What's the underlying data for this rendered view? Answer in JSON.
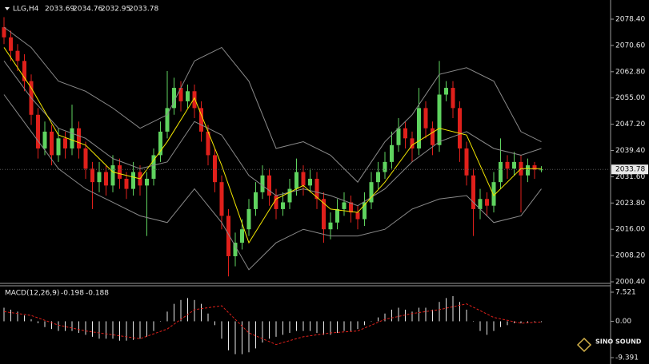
{
  "chart_data": [
    {
      "type": "candlestick",
      "symbol": "LLG,H4",
      "up_color": "#5fd35f",
      "down_color": "#e0201b",
      "grid": false,
      "ylim": [
        1999.93,
        2083.62
      ],
      "yticks": [
        {
          "value": 2078.4,
          "label": "2078.40"
        },
        {
          "value": 2070.6,
          "label": "2070.60"
        },
        {
          "value": 2062.8,
          "label": "2062.80"
        },
        {
          "value": 2055,
          "label": "2055.00"
        },
        {
          "value": 2047.2,
          "label": "2047.20"
        },
        {
          "value": 2039.4,
          "label": "2039.40"
        },
        {
          "value": 2031.6,
          "label": "2031.60"
        },
        {
          "value": 2023.8,
          "label": "2023.80"
        },
        {
          "value": 2016,
          "label": "2016.00"
        },
        {
          "value": 2008.2,
          "label": "2008.20"
        },
        {
          "value": 2000.4,
          "label": "2000.40"
        }
      ],
      "candles": [
        [
          2076,
          2079,
          2071,
          2073
        ],
        [
          2073,
          2075,
          2066,
          2069
        ],
        [
          2069,
          2071,
          2063,
          2066
        ],
        [
          2066,
          2068,
          2057,
          2060
        ],
        [
          2060,
          2062,
          2047,
          2050
        ],
        [
          2050,
          2052,
          2037,
          2040
        ],
        [
          2040,
          2048,
          2038,
          2045
        ],
        [
          2045,
          2047,
          2035,
          2038
        ],
        [
          2038,
          2046,
          2036,
          2043
        ],
        [
          2043,
          2045,
          2037,
          2040
        ],
        [
          2040,
          2053,
          2038,
          2046
        ],
        [
          2046,
          2048,
          2037,
          2040
        ],
        [
          2040,
          2042,
          2031,
          2034
        ],
        [
          2034,
          2036,
          2022,
          2030
        ],
        [
          2030,
          2036,
          2027,
          2033
        ],
        [
          2033,
          2035,
          2026,
          2029
        ],
        [
          2029,
          2038,
          2027,
          2035
        ],
        [
          2035,
          2037,
          2028,
          2031
        ],
        [
          2031,
          2033,
          2025,
          2028
        ],
        [
          2028,
          2036,
          2026,
          2033
        ],
        [
          2033,
          2035,
          2026,
          2029
        ],
        [
          2029,
          2033,
          2014,
          2031
        ],
        [
          2031,
          2040,
          2029,
          2038
        ],
        [
          2038,
          2048,
          2036,
          2045
        ],
        [
          2045,
          2063,
          2043,
          2052
        ],
        [
          2052,
          2061,
          2050,
          2058
        ],
        [
          2058,
          2060,
          2051,
          2054
        ],
        [
          2054,
          2059,
          2052,
          2057
        ],
        [
          2057,
          2059,
          2049,
          2052
        ],
        [
          2052,
          2054,
          2042,
          2045
        ],
        [
          2045,
          2047,
          2035,
          2038
        ],
        [
          2038,
          2040,
          2027,
          2030
        ],
        [
          2030,
          2032,
          2016,
          2020
        ],
        [
          2020,
          2022,
          2002,
          2008
        ],
        [
          2008,
          2015,
          2005,
          2012
        ],
        [
          2012,
          2019,
          2010,
          2016
        ],
        [
          2016,
          2025,
          2014,
          2022
        ],
        [
          2022,
          2030,
          2020,
          2027
        ],
        [
          2027,
          2035,
          2025,
          2032
        ],
        [
          2032,
          2034,
          2023,
          2026
        ],
        [
          2026,
          2028,
          2019,
          2022
        ],
        [
          2022,
          2027,
          2020,
          2024
        ],
        [
          2024,
          2031,
          2022,
          2028
        ],
        [
          2028,
          2037,
          2026,
          2033
        ],
        [
          2033,
          2035,
          2026,
          2029
        ],
        [
          2029,
          2034,
          2027,
          2031
        ],
        [
          2031,
          2033,
          2022,
          2025
        ],
        [
          2025,
          2027,
          2012,
          2016
        ],
        [
          2016,
          2021,
          2013,
          2018
        ],
        [
          2018,
          2025,
          2016,
          2022
        ],
        [
          2022,
          2027,
          2020,
          2024
        ],
        [
          2024,
          2026,
          2018,
          2021
        ],
        [
          2021,
          2023,
          2016,
          2019
        ],
        [
          2019,
          2027,
          2017,
          2024
        ],
        [
          2024,
          2033,
          2022,
          2030
        ],
        [
          2030,
          2036,
          2028,
          2033
        ],
        [
          2033,
          2039,
          2031,
          2036
        ],
        [
          2036,
          2045,
          2034,
          2041
        ],
        [
          2041,
          2049,
          2039,
          2046
        ],
        [
          2046,
          2048,
          2040,
          2043
        ],
        [
          2043,
          2045,
          2036,
          2040
        ],
        [
          2040,
          2058,
          2038,
          2052
        ],
        [
          2052,
          2054,
          2043,
          2046
        ],
        [
          2046,
          2048,
          2038,
          2041
        ],
        [
          2041,
          2066,
          2039,
          2056
        ],
        [
          2056,
          2060,
          2054,
          2058
        ],
        [
          2058,
          2060,
          2049,
          2052
        ],
        [
          2052,
          2054,
          2036,
          2040
        ],
        [
          2040,
          2042,
          2029,
          2032
        ],
        [
          2032,
          2034,
          2014,
          2022
        ],
        [
          2022,
          2028,
          2019,
          2025
        ],
        [
          2025,
          2027,
          2020,
          2023
        ],
        [
          2023,
          2033,
          2021,
          2030
        ],
        [
          2030,
          2043,
          2028,
          2036
        ],
        [
          2036,
          2038,
          2031,
          2034
        ],
        [
          2034,
          2039,
          2032,
          2036
        ],
        [
          2036,
          2038,
          2021,
          2032
        ],
        [
          2032,
          2037,
          2030,
          2035
        ],
        [
          2035,
          2036,
          2031,
          2033.69
        ],
        [
          2033.69,
          2034.76,
          2032.95,
          2033.78
        ]
      ],
      "indicator_x": [
        0,
        4,
        8,
        12,
        16,
        20,
        24,
        28,
        32,
        36,
        40,
        44,
        48,
        52,
        56,
        60,
        64,
        68,
        72,
        76,
        79
      ],
      "series": [
        {
          "color": "#8a8a8a",
          "values": [
            2076,
            2070,
            2060,
            2057,
            2052,
            2046,
            2050,
            2066,
            2070,
            2060,
            2040,
            2042,
            2038,
            2030,
            2042,
            2050,
            2062,
            2064,
            2060,
            2045,
            2042
          ]
        },
        {
          "color": "#8a8a8a",
          "values": [
            2066,
            2055,
            2046,
            2043,
            2037,
            2034,
            2036,
            2048,
            2044,
            2032,
            2026,
            2028,
            2026,
            2023,
            2028,
            2036,
            2042,
            2045,
            2040,
            2038,
            2040
          ]
        },
        {
          "color": "#8a8a8a",
          "values": [
            2056,
            2045,
            2034,
            2028,
            2024,
            2020,
            2018,
            2028,
            2018,
            2004,
            2012,
            2016,
            2014,
            2014,
            2016,
            2022,
            2025,
            2026,
            2018,
            2020,
            2028
          ]
        },
        {
          "color": "#f2e600",
          "values": [
            2070,
            2058,
            2044,
            2041,
            2033,
            2031,
            2042,
            2055,
            2035,
            2012,
            2025,
            2029,
            2022,
            2021,
            2030,
            2041,
            2046,
            2044,
            2026,
            2034,
            2034
          ]
        }
      ]
    },
    {
      "type": "macd",
      "label": "MACD(12,26,9)",
      "hist_color": "#e8e8e8",
      "signal_color": "#e0201b",
      "ylim": [
        -10.21,
        9.17
      ],
      "yticks": [
        7.521,
        {
          "value": 0,
          "label": "0.00"
        },
        -9.391
      ],
      "histogram": [
        3.5,
        3,
        2.5,
        1.5,
        0.5,
        -0.5,
        -1.5,
        -2,
        -2.5,
        -2.5,
        -2.5,
        -3,
        -3.5,
        -4,
        -4.5,
        -4.5,
        -4.5,
        -5,
        -5,
        -4.8,
        -4.5,
        -4,
        -2.5,
        0,
        2.5,
        4.5,
        5.5,
        6,
        5.5,
        4.5,
        2,
        -1,
        -4.5,
        -7.5,
        -8.5,
        -8.5,
        -8,
        -7,
        -5.5,
        -4.5,
        -4,
        -3.5,
        -3,
        -2.5,
        -2.5,
        -2.5,
        -3,
        -3.5,
        -3.5,
        -3,
        -2.5,
        -2.5,
        -2,
        -1,
        0,
        1,
        2,
        3,
        3.5,
        3,
        2.5,
        3.5,
        3.5,
        3,
        5,
        6,
        6.5,
        5,
        3,
        0,
        -2.5,
        -3.5,
        -2.5,
        -1.5,
        -1,
        -0.5,
        -0.5,
        -0.3,
        -0.2,
        -0.198
      ],
      "signal_x": [
        0,
        4,
        8,
        12,
        16,
        20,
        24,
        28,
        32,
        36,
        40,
        44,
        48,
        52,
        56,
        60,
        64,
        68,
        72,
        76,
        79
      ],
      "signal": [
        2.5,
        1.5,
        -1,
        -2.5,
        -3.5,
        -4.5,
        -2,
        3,
        4,
        -3,
        -6,
        -4,
        -3,
        -2.5,
        0.5,
        2,
        3,
        4.5,
        1,
        -0.5,
        -0.188
      ]
    }
  ],
  "logo": {
    "name": "SINO SOUND"
  }
}
